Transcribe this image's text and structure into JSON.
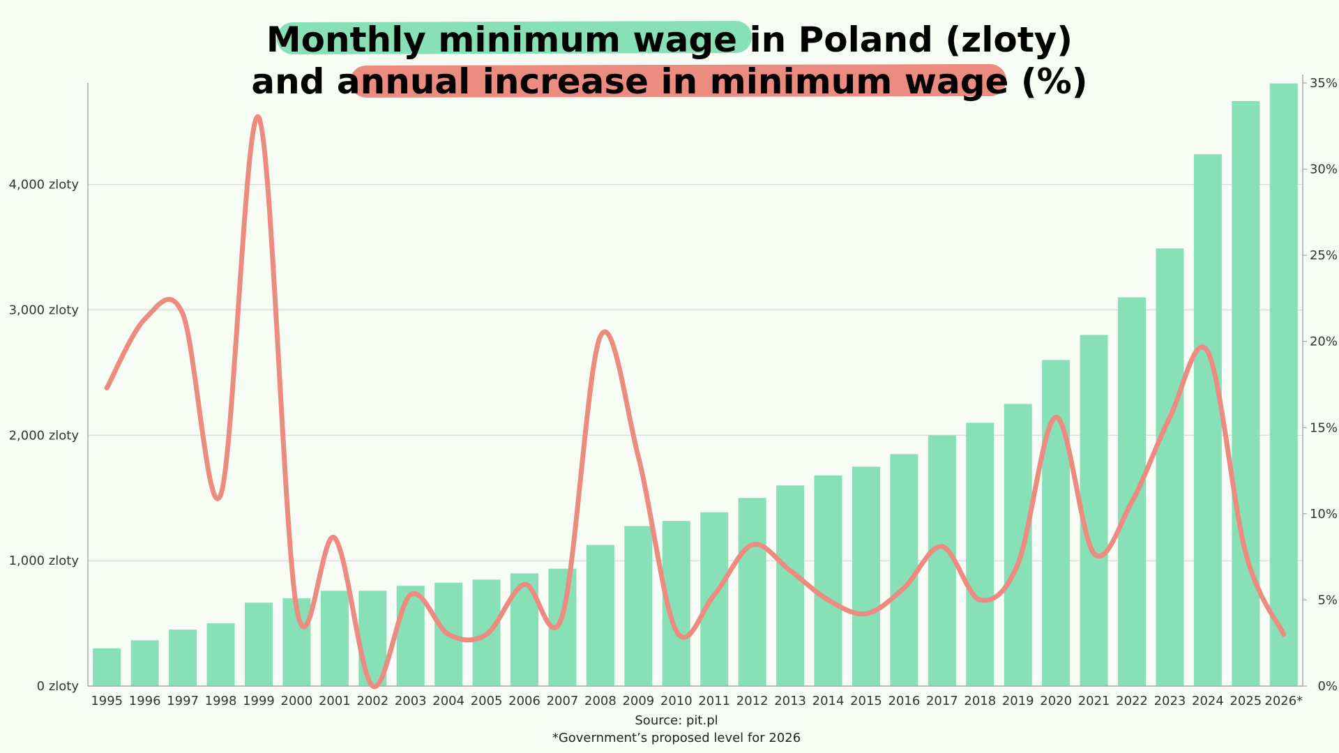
{
  "title": {
    "line1_highlight": "Monthly minimum wage",
    "line1_rest": " in Poland (zloty)",
    "line2_start": "and ",
    "line2_highlight": "annual increase in minimum wage",
    "line2_end": " (%)"
  },
  "colors": {
    "bar": "#88e0b6",
    "line": "#ec8c80",
    "highlight_green": "#88e0b6",
    "highlight_red": "#ec8c80",
    "grid": "#d6d6d6",
    "background": "#f7fdf5"
  },
  "footer": {
    "source": "Source: pit.pl",
    "note": "*Government’s proposed level for 2026"
  },
  "chart_data": {
    "type": "bar+line",
    "categories": [
      "1995",
      "1996",
      "1997",
      "1998",
      "1999",
      "2000",
      "2001",
      "2002",
      "2003",
      "2004",
      "2005",
      "2006",
      "2007",
      "2008",
      "2009",
      "2010",
      "2011",
      "2012",
      "2013",
      "2014",
      "2015",
      "2016",
      "2017",
      "2018",
      "2019",
      "2020",
      "2021",
      "2022",
      "2023",
      "2024",
      "2025",
      "2026*"
    ],
    "series": [
      {
        "axis": "left",
        "kind": "bar",
        "values": [
          300,
          365,
          450,
          500,
          665,
          700,
          760,
          760,
          800,
          824,
          849,
          899,
          936,
          1126,
          1276,
          1317,
          1386,
          1500,
          1600,
          1680,
          1750,
          1850,
          2000,
          2100,
          2250,
          2600,
          2800,
          3100,
          3490,
          4242,
          4666,
          4806
        ]
      },
      {
        "axis": "right",
        "kind": "line",
        "values": [
          17.3,
          21.3,
          21.6,
          11.1,
          33.0,
          4.5,
          8.6,
          0.0,
          5.3,
          3.0,
          3.0,
          5.9,
          4.1,
          20.3,
          13.3,
          3.2,
          5.3,
          8.2,
          6.7,
          5.0,
          4.2,
          5.7,
          8.1,
          5.0,
          7.1,
          15.6,
          7.7,
          10.7,
          15.6,
          19.4,
          7.7,
          3.0
        ]
      }
    ],
    "y_left": {
      "ticks": [
        "0 zloty",
        "1,000 zloty",
        "2,000 zloty",
        "3,000 zloty",
        "4,000 zloty"
      ],
      "tick_values": [
        0,
        1000,
        2000,
        3000,
        4000
      ],
      "range": [
        0,
        4810
      ]
    },
    "y_right": {
      "ticks": [
        "0%",
        "5%",
        "10%",
        "15%",
        "20%",
        "25%",
        "30%",
        "35%"
      ],
      "tick_values": [
        0,
        5,
        10,
        15,
        20,
        25,
        30,
        35
      ],
      "range": [
        0,
        35
      ]
    },
    "grid": true,
    "legend": "none"
  }
}
